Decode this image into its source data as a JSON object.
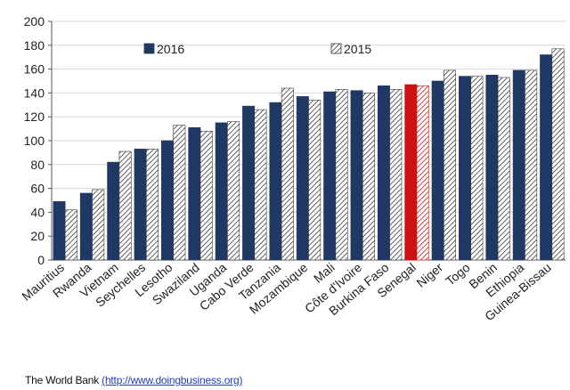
{
  "chart_data": {
    "type": "bar",
    "categories": [
      "Mauritius",
      "Rwanda",
      "Vietnam",
      "Seychelles",
      "Lesotho",
      "Swaziland",
      "Uganda",
      "Cabo Verde",
      "Tanzania",
      "Mozambique",
      "Mali",
      "Côte d'Ivoire",
      "Burkina Faso",
      "Senegal",
      "Niger",
      "Togo",
      "Benin",
      "Ethiopia",
      "Guinea-Bissau"
    ],
    "series": [
      {
        "name": "2016",
        "values": [
          49,
          56,
          82,
          93,
          100,
          111,
          115,
          129,
          132,
          137,
          141,
          142,
          146,
          147,
          150,
          154,
          155,
          159,
          172
        ],
        "color": "#1f3864"
      },
      {
        "name": "2015",
        "values": [
          42,
          59,
          91,
          93,
          113,
          108,
          116,
          126,
          144,
          134,
          143,
          140,
          143,
          146,
          159,
          154,
          153,
          159,
          177
        ],
        "color": "#ffffff",
        "pattern": "diagonal-hatch"
      }
    ],
    "highlight": {
      "category": "Senegal",
      "color_2016": "#cc1111",
      "color_2015_hatch": "#cc1111"
    },
    "ylim": [
      0,
      200
    ],
    "yticks": [
      0,
      20,
      40,
      60,
      80,
      100,
      120,
      140,
      160,
      180,
      200
    ],
    "grid": true,
    "legend_position": "top"
  },
  "source": {
    "prefix": "The World  Bank ",
    "link": "(http://www.doingbusiness.org)"
  }
}
